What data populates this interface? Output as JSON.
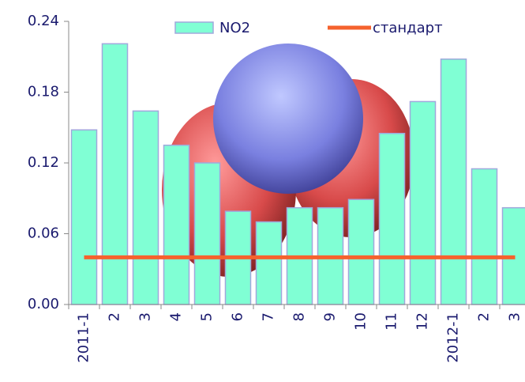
{
  "chart_data": {
    "type": "bar",
    "categories": [
      "2011-1",
      "2",
      "3",
      "4",
      "5",
      "6",
      "7",
      "8",
      "9",
      "10",
      "11",
      "12",
      "2012-1",
      "2",
      "3"
    ],
    "series": [
      {
        "name": "NO2",
        "type": "bar",
        "color": "#80ffd4",
        "values": [
          0.148,
          0.221,
          0.164,
          0.135,
          0.12,
          0.079,
          0.07,
          0.082,
          0.082,
          0.089,
          0.145,
          0.172,
          0.208,
          0.115,
          0.082
        ]
      },
      {
        "name": "стандарт",
        "type": "line",
        "color": "#f5622d",
        "values": [
          0.04,
          0.04,
          0.04,
          0.04,
          0.04,
          0.04,
          0.04,
          0.04,
          0.04,
          0.04,
          0.04,
          0.04,
          0.04,
          0.04,
          0.04
        ]
      }
    ],
    "ylim": [
      0,
      0.24
    ],
    "yticks": [
      {
        "value": 0,
        "label": "0.00"
      },
      0.06,
      0.12,
      0.18,
      0.24
    ]
  }
}
